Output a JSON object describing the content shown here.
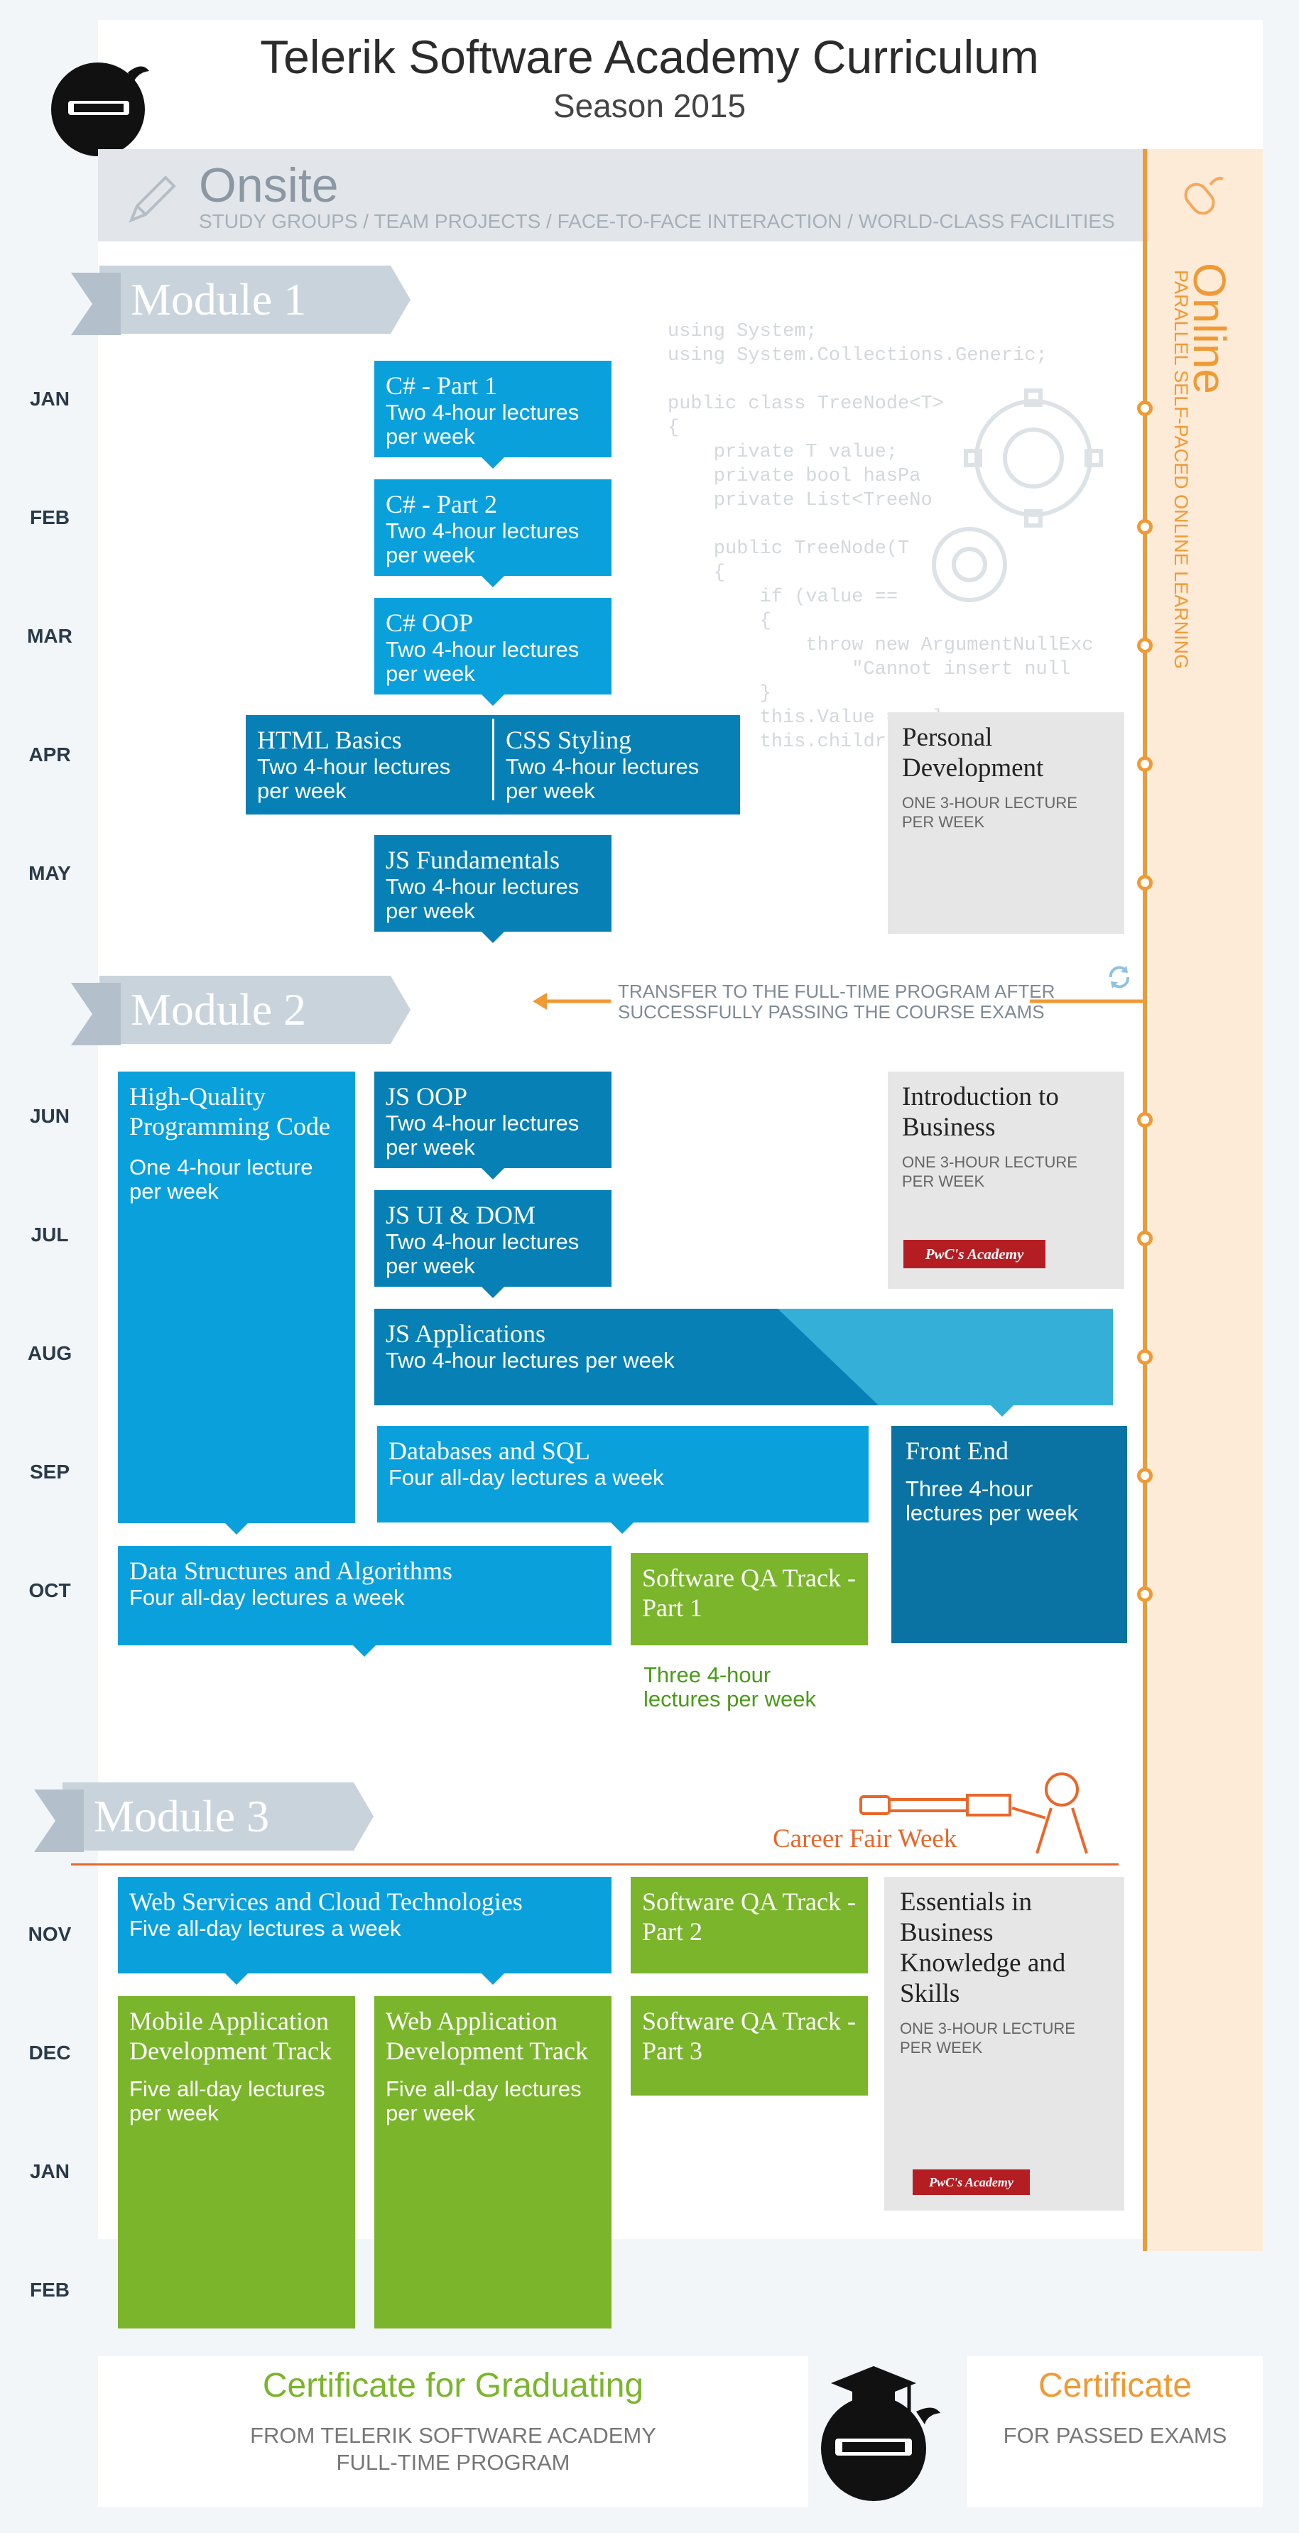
{
  "header": {
    "title": "Telerik Software Academy Curriculum",
    "subtitle": "Season 2015"
  },
  "onsite": {
    "title": "Onsite",
    "subtitle": "STUDY GROUPS / TEAM PROJECTS / FACE-TO-FACE INTERACTION / WORLD-CLASS FACILITIES"
  },
  "online": {
    "title": "Online",
    "subtitle": "PARALLEL SELF-PACED ONLINE LEARNING"
  },
  "modules": [
    "Module 1",
    "Module 2",
    "Module 3"
  ],
  "months": [
    "JAN",
    "FEB",
    "MAR",
    "APR",
    "MAY",
    "JUN",
    "JUL",
    "AUG",
    "SEP",
    "OCT",
    "NOV",
    "DEC",
    "JAN",
    "FEB"
  ],
  "code_lines": [
    "using System;",
    "using System.Collections.Generic;",
    "",
    "public class TreeNode<T>",
    "{",
    "    private T value;",
    "    private bool hasPa",
    "    private List<TreeNo",
    "",
    "    public TreeNode(T",
    "    {",
    "        if (value ==",
    "        {",
    "            throw new ArgumentNullExc",
    "                \"Cannot insert null",
    "        }",
    "        this.Value = value;",
    "        this.childr"
  ],
  "transfer": {
    "line1": "TRANSFER TO THE FULL-TIME PROGRAM AFTER",
    "line2": "SUCCESSFULLY PASSING THE COURSE EXAMS"
  },
  "career": "Career Fair Week",
  "courses": {
    "cs1": {
      "title": "C# - Part 1",
      "desc": "Two 4-hour lectures per week"
    },
    "cs2": {
      "title": "C# - Part 2",
      "desc": "Two 4-hour lectures per week"
    },
    "csoop": {
      "title": "C# OOP",
      "desc": "Two 4-hour lectures per week"
    },
    "html": {
      "title": "HTML Basics",
      "desc": "Two 4-hour lectures per week"
    },
    "css": {
      "title": "CSS Styling",
      "desc": "Two 4-hour lectures per week"
    },
    "jsf": {
      "title": "JS Fundamentals",
      "desc": "Two 4-hour lectures per week"
    },
    "hqc": {
      "title": "High-Quality Programming Code",
      "desc": "One 4-hour lecture per week"
    },
    "jsoop": {
      "title": "JS OOP",
      "desc": "Two 4-hour lectures per week"
    },
    "jsui": {
      "title": "JS UI & DOM",
      "desc": "Two 4-hour lectures per week"
    },
    "jsapp": {
      "title": "JS Applications",
      "desc": "Two 4-hour lectures per week"
    },
    "db": {
      "title": "Databases and SQL",
      "desc": "Four all-day lectures a week"
    },
    "fe": {
      "title": "Front End",
      "desc": "Three 4-hour lectures per week"
    },
    "dsa": {
      "title": "Data Structures and Algorithms",
      "desc": "Four all-day lectures a week"
    },
    "qa1": {
      "title": "Software QA Track - Part 1",
      "desc": "Three 4-hour lectures per week"
    },
    "ws": {
      "title": "Web Services and Cloud Technologies",
      "desc": "Five all-day lectures a week"
    },
    "qa2": {
      "title": "Software QA Track - Part 2"
    },
    "qa3": {
      "title": "Software QA Track - Part 3"
    },
    "mobile": {
      "title": "Mobile Application Development Track",
      "desc": "Five all-day lectures per week"
    },
    "webapp": {
      "title": "Web Application Development Track",
      "desc": "Five all-day lectures per week"
    }
  },
  "soft": {
    "pd": {
      "title": "Personal Development",
      "desc": "ONE 3-HOUR LECTURE PER WEEK"
    },
    "intro": {
      "title": "Introduction to Business",
      "desc": "ONE 3-HOUR LECTURE PER WEEK",
      "badge": "PwC's Academy"
    },
    "ess": {
      "title": "Essentials in Business Knowledge and Skills",
      "desc": "ONE 3-HOUR LECTURE PER WEEK",
      "badge": "PwC's Academy"
    }
  },
  "footer": {
    "grad_title": "Certificate for Graduating",
    "grad_sub1": "FROM TELERIK SOFTWARE ACADEMY",
    "grad_sub2": "FULL-TIME PROGRAM",
    "cert_title": "Certificate",
    "cert_sub": "FOR PASSED EXAMS"
  },
  "colors": {
    "blue_light": "#0aa0dc",
    "blue_mid": "#0680b5",
    "blue_dark": "#0b73a3",
    "green": "#7ab52b",
    "orange": "#f09a36",
    "career_orange": "#e8672a",
    "pwc_red": "#b41e23"
  }
}
